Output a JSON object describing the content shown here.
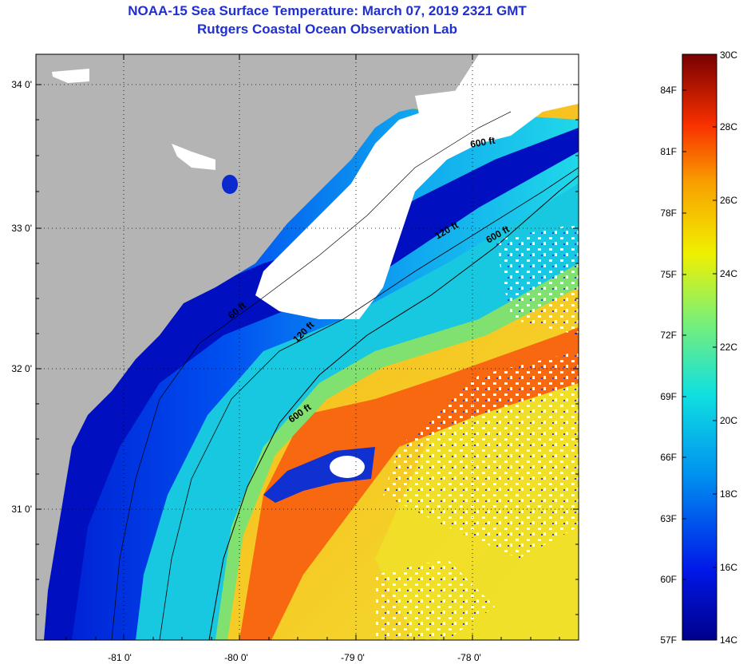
{
  "title_line1": "NOAA-15 Sea Surface Temperature:  March 07, 2019 2321 GMT",
  "title_line2": "Rutgers Coastal Ocean Observation Lab",
  "map": {
    "lon_ticks": [
      "-81 0'",
      "-80 0'",
      "-79 0'",
      "-78 0'"
    ],
    "lat_ticks": [
      "34 0'",
      "33 0'",
      "32 0'",
      "31 0'"
    ],
    "isobath_labels": [
      "600 ft",
      "120 ft",
      "600 ft",
      "60 ft",
      "120 ft",
      "600 ft"
    ],
    "colors": {
      "land": "#b4b4b4",
      "cloud": "#ffffff",
      "cold": "#0010c0",
      "mid": "#18c8e0",
      "warm": "#f87010",
      "yellow": "#f0e020"
    }
  },
  "colorbar": {
    "fahrenheit": [
      "84F",
      "81F",
      "78F",
      "75F",
      "72F",
      "69F",
      "66F",
      "63F",
      "60F",
      "57F"
    ],
    "celsius": [
      "30C",
      "28C",
      "26C",
      "24C",
      "22C",
      "20C",
      "18C",
      "16C",
      "14C"
    ]
  }
}
